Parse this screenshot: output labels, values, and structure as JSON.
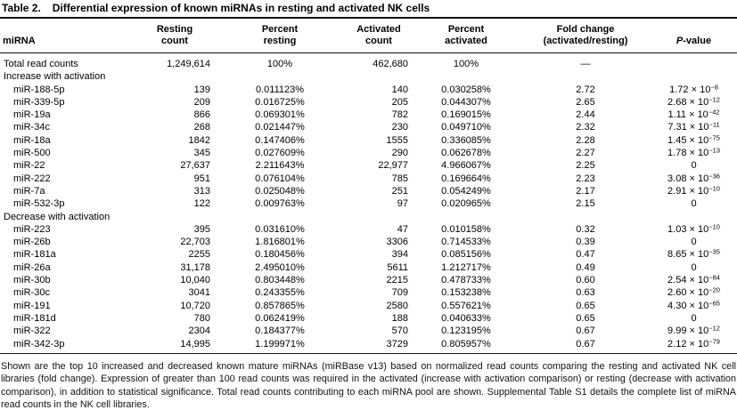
{
  "title": {
    "label": "Table 2.",
    "text": "Differential expression of known miRNAs in resting and activated NK cells"
  },
  "table": {
    "columns": [
      {
        "key": "mirna",
        "lines": [
          "miRNA"
        ]
      },
      {
        "key": "resting-count",
        "lines": [
          "Resting",
          "count"
        ]
      },
      {
        "key": "percent-resting",
        "lines": [
          "Percent",
          "resting"
        ]
      },
      {
        "key": "activated-count",
        "lines": [
          "Activated",
          "count"
        ]
      },
      {
        "key": "percent-activated",
        "lines": [
          "Percent",
          "activated"
        ]
      },
      {
        "key": "fold-change",
        "lines": [
          "Fold change",
          "(activated/resting)"
        ]
      },
      {
        "key": "p-value",
        "lines": [
          {
            "italic": "P",
            "text": "-value"
          }
        ]
      }
    ],
    "rows": [
      {
        "type": "data",
        "indent": false,
        "name": "Total read counts",
        "resting_count": "1,249,614",
        "percent_resting": "100%",
        "activated_count": "462,680",
        "percent_activated": "100%",
        "fold_change": "—",
        "p_value": {
          "text": ""
        }
      },
      {
        "type": "section",
        "label": "Increase with activation"
      },
      {
        "type": "data",
        "indent": true,
        "name": "miR-188-5p",
        "resting_count": "139",
        "percent_resting": "0.011123%",
        "activated_count": "140",
        "percent_activated": "0.030258%",
        "fold_change": "2.72",
        "p_value": {
          "coefficient": "1.72",
          "base": "10",
          "exponent": "−8"
        }
      },
      {
        "type": "data",
        "indent": true,
        "name": "miR-339-5p",
        "resting_count": "209",
        "percent_resting": "0.016725%",
        "activated_count": "205",
        "percent_activated": "0.044307%",
        "fold_change": "2.65",
        "p_value": {
          "coefficient": "2.68",
          "base": "10",
          "exponent": "−12"
        }
      },
      {
        "type": "data",
        "indent": true,
        "name": "miR-19a",
        "resting_count": "866",
        "percent_resting": "0.069301%",
        "activated_count": "782",
        "percent_activated": "0.169015%",
        "fold_change": "2.44",
        "p_value": {
          "coefficient": "1.11",
          "base": "10",
          "exponent": "−42"
        }
      },
      {
        "type": "data",
        "indent": true,
        "name": "miR-34c",
        "resting_count": "268",
        "percent_resting": "0.021447%",
        "activated_count": "230",
        "percent_activated": "0.049710%",
        "fold_change": "2.32",
        "p_value": {
          "coefficient": "7.31",
          "base": "10",
          "exponent": "−11"
        }
      },
      {
        "type": "data",
        "indent": true,
        "name": "miR-18a",
        "resting_count": "1842",
        "percent_resting": "0.147406%",
        "activated_count": "1555",
        "percent_activated": "0.336085%",
        "fold_change": "2.28",
        "p_value": {
          "coefficient": "1.45",
          "base": "10",
          "exponent": "−75"
        }
      },
      {
        "type": "data",
        "indent": true,
        "name": "miR-500",
        "resting_count": "345",
        "percent_resting": "0.027609%",
        "activated_count": "290",
        "percent_activated": "0.062678%",
        "fold_change": "2.27",
        "p_value": {
          "coefficient": "1.78",
          "base": "10",
          "exponent": "−13"
        }
      },
      {
        "type": "data",
        "indent": true,
        "name": "miR-22",
        "resting_count": "27,637",
        "percent_resting": "2.211643%",
        "activated_count": "22,977",
        "percent_activated": "4.966067%",
        "fold_change": "2.25",
        "p_value": {
          "text": "0"
        }
      },
      {
        "type": "data",
        "indent": true,
        "name": "miR-222",
        "resting_count": "951",
        "percent_resting": "0.076104%",
        "activated_count": "785",
        "percent_activated": "0.169664%",
        "fold_change": "2.23",
        "p_value": {
          "coefficient": "3.08",
          "base": "10",
          "exponent": "−36"
        }
      },
      {
        "type": "data",
        "indent": true,
        "name": "miR-7a",
        "resting_count": "313",
        "percent_resting": "0.025048%",
        "activated_count": "251",
        "percent_activated": "0.054249%",
        "fold_change": "2.17",
        "p_value": {
          "coefficient": "2.91",
          "base": "10",
          "exponent": "−10"
        }
      },
      {
        "type": "data",
        "indent": true,
        "name": "miR-532-3p",
        "resting_count": "122",
        "percent_resting": "0.009763%",
        "activated_count": "97",
        "percent_activated": "0.020965%",
        "fold_change": "2.15",
        "p_value": {
          "text": "0"
        }
      },
      {
        "type": "section",
        "label": "Decrease with activation"
      },
      {
        "type": "data",
        "indent": true,
        "name": "miR-223",
        "resting_count": "395",
        "percent_resting": "0.031610%",
        "activated_count": "47",
        "percent_activated": "0.010158%",
        "fold_change": "0.32",
        "p_value": {
          "coefficient": "1.03",
          "base": "10",
          "exponent": "−10"
        }
      },
      {
        "type": "data",
        "indent": true,
        "name": "miR-26b",
        "resting_count": "22,703",
        "percent_resting": "1.816801%",
        "activated_count": "3306",
        "percent_activated": "0.714533%",
        "fold_change": "0.39",
        "p_value": {
          "text": "0"
        }
      },
      {
        "type": "data",
        "indent": true,
        "name": "miR-181a",
        "resting_count": "2255",
        "percent_resting": "0.180456%",
        "activated_count": "394",
        "percent_activated": "0.085156%",
        "fold_change": "0.47",
        "p_value": {
          "coefficient": "8.65",
          "base": "10",
          "exponent": "−35"
        }
      },
      {
        "type": "data",
        "indent": true,
        "name": "miR-26a",
        "resting_count": "31,178",
        "percent_resting": "2.495010%",
        "activated_count": "5611",
        "percent_activated": "1.212717%",
        "fold_change": "0.49",
        "p_value": {
          "text": "0"
        }
      },
      {
        "type": "data",
        "indent": true,
        "name": "miR-30b",
        "resting_count": "10,040",
        "percent_resting": "0.803448%",
        "activated_count": "2215",
        "percent_activated": "0.478733%",
        "fold_change": "0.60",
        "p_value": {
          "coefficient": "2.54",
          "base": "10",
          "exponent": "−84"
        }
      },
      {
        "type": "data",
        "indent": true,
        "name": "miR-30c",
        "resting_count": "3041",
        "percent_resting": "0.243355%",
        "activated_count": "709",
        "percent_activated": "0.153238%",
        "fold_change": "0.63",
        "p_value": {
          "coefficient": "2.60",
          "base": "10",
          "exponent": "−20"
        }
      },
      {
        "type": "data",
        "indent": true,
        "name": "miR-191",
        "resting_count": "10,720",
        "percent_resting": "0.857865%",
        "activated_count": "2580",
        "percent_activated": "0.557621%",
        "fold_change": "0.65",
        "p_value": {
          "coefficient": "4.30",
          "base": "10",
          "exponent": "−65"
        }
      },
      {
        "type": "data",
        "indent": true,
        "name": "miR-181d",
        "resting_count": "780",
        "percent_resting": "0.062419%",
        "activated_count": "188",
        "percent_activated": "0.040633%",
        "fold_change": "0.65",
        "p_value": {
          "text": "0"
        }
      },
      {
        "type": "data",
        "indent": true,
        "name": "miR-322",
        "resting_count": "2304",
        "percent_resting": "0.184377%",
        "activated_count": "570",
        "percent_activated": "0.123195%",
        "fold_change": "0.67",
        "p_value": {
          "coefficient": "9.99",
          "base": "10",
          "exponent": "−12"
        }
      },
      {
        "type": "data",
        "indent": true,
        "name": "miR-342-3p",
        "resting_count": "14,995",
        "percent_resting": "1.199971%",
        "activated_count": "3729",
        "percent_activated": "0.805957%",
        "fold_change": "0.67",
        "p_value": {
          "coefficient": "2.12",
          "base": "10",
          "exponent": "−79"
        }
      }
    ]
  },
  "footnote": "Shown are the top 10 increased and decreased known mature miRNAs (miRBase v13) based on normalized read counts comparing the resting and activated NK cell libraries (fold change). Expression of greater than 100 read counts was required in the activated (increase with activation comparison) or resting (decrease with activation comparison), in addition to statistical significance. Total read counts contributing to each miRNA pool are shown. Supplemental Table S1 details the complete list of miRNA read counts in the NK cell libraries."
}
